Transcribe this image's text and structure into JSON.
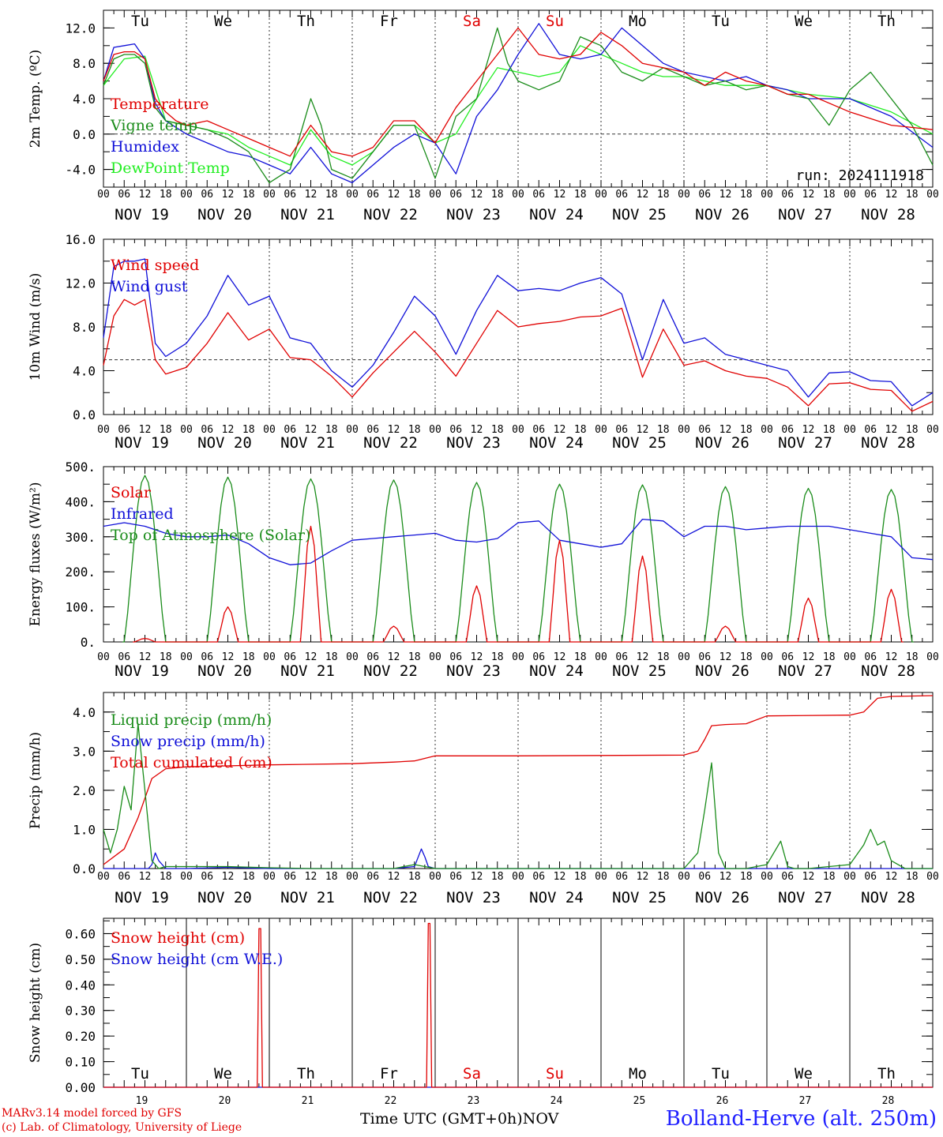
{
  "days": [
    {
      "date": "NOV 19",
      "dow": "Tu",
      "weekend": false,
      "num": "19"
    },
    {
      "date": "NOV 20",
      "dow": "We",
      "weekend": false,
      "num": "20"
    },
    {
      "date": "NOV 21",
      "dow": "Th",
      "weekend": false,
      "num": "21"
    },
    {
      "date": "NOV 22",
      "dow": "Fr",
      "weekend": false,
      "num": "22"
    },
    {
      "date": "NOV 23",
      "dow": "Sa",
      "weekend": true,
      "num": "23"
    },
    {
      "date": "NOV 24",
      "dow": "Su",
      "weekend": true,
      "num": "24"
    },
    {
      "date": "NOV 25",
      "dow": "Mo",
      "weekend": false,
      "num": "25"
    },
    {
      "date": "NOV 26",
      "dow": "Tu",
      "weekend": false,
      "num": "26"
    },
    {
      "date": "NOV 27",
      "dow": "We",
      "weekend": false,
      "num": "27"
    },
    {
      "date": "NOV 28",
      "dow": "Th",
      "weekend": false,
      "num": "28"
    }
  ],
  "hour_labels": [
    "00",
    "06",
    "12",
    "18"
  ],
  "end_hour_label": "00",
  "colors": {
    "red": "#e00000",
    "green": "#1a8c1a",
    "blue": "#1010d8",
    "lightgreen": "#22ee22",
    "weekend": "#e00000"
  },
  "footer": {
    "credit_line1": "MARv3.14 model forced by GFS",
    "credit_line2": "(c) Lab. of Climatology, University of Liege",
    "axis_title": "Time UTC (GMT+0h)",
    "month": "NOV",
    "location": "Bolland-Herve (alt. 250m)"
  },
  "chart_data": [
    {
      "type": "line",
      "ylabel": "2m Temp. (ºC)",
      "ylim": [
        -6,
        14
      ],
      "yticks": [
        -4,
        0,
        4,
        8,
        12
      ],
      "ytick_labels": [
        "-4.0",
        "0.0",
        "4.0",
        "8.0",
        "12.0"
      ],
      "hline": 0,
      "annotation": "run: 2024111918",
      "series": [
        {
          "name": "Temperature",
          "color": "#e00000",
          "t": [
            0,
            3,
            6,
            9,
            12,
            15,
            18,
            21,
            24,
            30,
            36,
            42,
            48,
            54,
            60,
            66,
            72,
            78,
            84,
            90,
            96,
            102,
            108,
            114,
            120,
            126,
            132,
            138,
            144,
            150,
            156,
            162,
            168,
            174,
            180,
            186,
            192,
            198,
            204,
            216,
            228,
            240
          ],
          "v": [
            6,
            9,
            9.3,
            9.3,
            8.5,
            4,
            2.5,
            1.5,
            1,
            1.5,
            0.5,
            -0.5,
            -1.5,
            -2.5,
            1,
            -2,
            -2.5,
            -1.5,
            1.5,
            1.5,
            -1,
            3,
            6,
            9,
            12,
            9,
            8.5,
            9,
            11.5,
            10,
            8,
            7.5,
            7,
            5.5,
            7,
            6,
            5.5,
            4.5,
            4.5,
            2.5,
            1,
            0.5
          ]
        },
        {
          "name": "Vigne temp",
          "color": "#1a8c1a",
          "t": [
            0,
            3,
            6,
            9,
            12,
            15,
            18,
            24,
            30,
            36,
            42,
            48,
            54,
            60,
            63,
            66,
            72,
            78,
            84,
            90,
            96,
            102,
            108,
            111,
            114,
            117,
            120,
            126,
            132,
            138,
            144,
            150,
            156,
            162,
            168,
            174,
            180,
            186,
            192,
            198,
            204,
            210,
            216,
            222,
            228,
            234,
            240
          ],
          "v": [
            5.5,
            8.5,
            9,
            9,
            8,
            3,
            1.5,
            1,
            0.5,
            -0.5,
            -2,
            -5.5,
            -4,
            4,
            1,
            -4,
            -5,
            -2,
            1,
            1,
            -5,
            2,
            4,
            8,
            12,
            8,
            6,
            5,
            6,
            11,
            10,
            7,
            6,
            7.5,
            6.5,
            5.5,
            6,
            5,
            5.5,
            4.5,
            4,
            1,
            5,
            7,
            4,
            1,
            -3.5
          ]
        },
        {
          "name": "Humidex",
          "color": "#1010d8",
          "t": [
            0,
            3,
            6,
            9,
            12,
            15,
            18,
            24,
            30,
            36,
            42,
            48,
            54,
            60,
            66,
            72,
            78,
            84,
            90,
            96,
            102,
            108,
            114,
            120,
            126,
            132,
            138,
            144,
            150,
            156,
            162,
            168,
            174,
            180,
            186,
            192,
            198,
            204,
            216,
            228,
            240
          ],
          "v": [
            6,
            9.8,
            10,
            10.2,
            8.5,
            3.5,
            1.5,
            0,
            -1,
            -2,
            -2.5,
            -3.5,
            -4.5,
            -1.5,
            -4.5,
            -5.5,
            -3.5,
            -1.5,
            0,
            -1,
            -4.5,
            2,
            5,
            9,
            12.5,
            9,
            8.5,
            9,
            12,
            10,
            8,
            7,
            6.5,
            6,
            6.5,
            5.5,
            5,
            4,
            4,
            2,
            -1.5
          ]
        },
        {
          "name": "DewPoint Temp",
          "color": "#22ee22",
          "t": [
            0,
            6,
            12,
            18,
            24,
            30,
            36,
            42,
            48,
            54,
            60,
            66,
            72,
            78,
            84,
            90,
            96,
            102,
            108,
            114,
            120,
            126,
            132,
            138,
            144,
            150,
            156,
            162,
            168,
            174,
            180,
            192,
            204,
            216,
            228,
            240
          ],
          "v": [
            5.5,
            8.5,
            8.8,
            1.5,
            1,
            0.5,
            0,
            -1.5,
            -2.5,
            -3.5,
            0.5,
            -2.5,
            -3.5,
            -2,
            1,
            1,
            -1,
            0,
            4,
            7.5,
            7,
            6.5,
            7,
            10,
            9,
            8,
            7,
            6.5,
            6.5,
            6,
            5.5,
            5.5,
            4.5,
            4,
            2.5,
            0
          ]
        }
      ]
    },
    {
      "type": "line",
      "ylabel": "10m Wind (m/s)",
      "ylim": [
        0,
        16
      ],
      "yticks": [
        0,
        4,
        8,
        12,
        16
      ],
      "ytick_labels": [
        "0.0",
        "4.0",
        "8.0",
        "12.0",
        "16.0"
      ],
      "hline": 5,
      "series": [
        {
          "name": "Wind speed",
          "color": "#e00000",
          "t": [
            0,
            3,
            6,
            9,
            12,
            15,
            18,
            24,
            30,
            36,
            42,
            48,
            54,
            60,
            66,
            72,
            78,
            84,
            90,
            96,
            102,
            108,
            114,
            120,
            126,
            132,
            138,
            144,
            150,
            156,
            162,
            168,
            174,
            180,
            186,
            192,
            198,
            204,
            210,
            216,
            222,
            228,
            234,
            240
          ],
          "v": [
            4.5,
            9,
            10.5,
            10,
            10.5,
            5,
            3.7,
            4.3,
            6.5,
            9.3,
            6.8,
            7.8,
            5.2,
            5,
            3.5,
            1.6,
            3.8,
            5.7,
            7.6,
            5.7,
            3.5,
            6.5,
            9.5,
            8,
            8.3,
            8.5,
            8.9,
            9,
            9.7,
            3.4,
            7.8,
            4.5,
            4.9,
            4,
            3.5,
            3.3,
            2.5,
            0.8,
            2.8,
            2.9,
            2.3,
            2.2,
            0.3,
            1.2
          ]
        },
        {
          "name": "Wind gust",
          "color": "#1010d8",
          "t": [
            0,
            3,
            6,
            9,
            12,
            15,
            18,
            24,
            30,
            36,
            42,
            48,
            54,
            60,
            66,
            72,
            78,
            84,
            90,
            96,
            102,
            108,
            114,
            120,
            126,
            132,
            138,
            144,
            150,
            156,
            162,
            168,
            174,
            180,
            186,
            192,
            198,
            204,
            210,
            216,
            222,
            228,
            234,
            240
          ],
          "v": [
            7,
            13.5,
            14,
            14,
            14.2,
            6.5,
            5.3,
            6.5,
            9,
            12.7,
            10,
            10.8,
            7,
            6.5,
            4,
            2.5,
            4.5,
            7.5,
            10.8,
            9,
            5.5,
            9.5,
            12.7,
            11.3,
            11.5,
            11.3,
            12,
            12.5,
            11,
            5,
            10.5,
            6.5,
            7,
            5.5,
            5,
            4.5,
            4,
            1.6,
            3.8,
            3.9,
            3.1,
            3,
            0.8,
            2
          ]
        }
      ]
    },
    {
      "type": "line",
      "ylabel": "Energy fluxes (W/m²)",
      "ylim": [
        0,
        500
      ],
      "yticks": [
        0,
        100,
        200,
        300,
        400,
        500
      ],
      "ytick_labels": [
        "0.",
        "100.",
        "200.",
        "300.",
        "400.",
        "500."
      ],
      "series": [
        {
          "name": "Solar",
          "color": "#e00000",
          "peaks": [
            10,
            100,
            330,
            45,
            160,
            290,
            245,
            45,
            125,
            150
          ]
        },
        {
          "name": "Infrared",
          "color": "#1010d8",
          "t": [
            0,
            6,
            12,
            18,
            24,
            30,
            36,
            42,
            48,
            54,
            60,
            66,
            72,
            78,
            84,
            90,
            96,
            102,
            108,
            114,
            120,
            126,
            132,
            138,
            144,
            150,
            156,
            162,
            168,
            174,
            180,
            186,
            192,
            198,
            204,
            210,
            216,
            222,
            228,
            234,
            240
          ],
          "v": [
            330,
            340,
            330,
            310,
            300,
            300,
            305,
            280,
            240,
            220,
            225,
            260,
            290,
            295,
            300,
            305,
            310,
            290,
            285,
            295,
            340,
            345,
            290,
            280,
            270,
            280,
            350,
            345,
            300,
            330,
            330,
            320,
            325,
            330,
            330,
            330,
            320,
            310,
            300,
            240,
            235
          ]
        },
        {
          "name": "Top of Atmosphere (Solar)",
          "color": "#1a8c1a",
          "peaks": [
            475,
            470,
            465,
            462,
            455,
            450,
            448,
            443,
            438,
            435
          ]
        }
      ]
    },
    {
      "type": "line",
      "ylabel": "Precip (mm/h)",
      "ylim": [
        0,
        4.5
      ],
      "yticks": [
        0,
        1,
        2,
        3,
        4
      ],
      "ytick_labels": [
        "0.0",
        "1.0",
        "2.0",
        "3.0",
        "4.0"
      ],
      "series": [
        {
          "name": "Liquid precip (mm/h)",
          "color": "#1a8c1a",
          "t": [
            0,
            2,
            4,
            6,
            8,
            10,
            12,
            14,
            16,
            18,
            24,
            36,
            48,
            60,
            84,
            90,
            96,
            120,
            168,
            172,
            174,
            176,
            178,
            180,
            186,
            192,
            196,
            198,
            200,
            204,
            216,
            220,
            222,
            224,
            226,
            228,
            232,
            240
          ],
          "v": [
            1,
            0.4,
            1,
            2.1,
            1.5,
            3.7,
            2,
            0.2,
            0,
            0.05,
            0.05,
            0.05,
            0.02,
            0,
            0,
            0.1,
            0,
            0,
            0,
            0.4,
            1.5,
            2.7,
            0.4,
            0,
            0,
            0.1,
            0.7,
            0.05,
            0,
            0,
            0.1,
            0.6,
            1.0,
            0.6,
            0.7,
            0.2,
            0,
            0
          ]
        },
        {
          "name": "Snow precip (mm/h)",
          "color": "#1010d8",
          "t": [
            0,
            13,
            14,
            15,
            16,
            18,
            24,
            36,
            48,
            60,
            84,
            90,
            92,
            93,
            94,
            96,
            240
          ],
          "v": [
            0,
            0,
            0.1,
            0.4,
            0.2,
            0,
            0,
            0.03,
            0,
            0,
            0,
            0.05,
            0.5,
            0.3,
            0.05,
            0,
            0
          ]
        },
        {
          "name": "Total cumulated (cm)",
          "color": "#e00000",
          "t": [
            0,
            6,
            10,
            14,
            18,
            24,
            48,
            72,
            84,
            90,
            96,
            120,
            168,
            172,
            174,
            176,
            180,
            186,
            192,
            216,
            220,
            224,
            228,
            240
          ],
          "v": [
            0.1,
            0.5,
            1.3,
            2.3,
            2.55,
            2.6,
            2.65,
            2.68,
            2.72,
            2.75,
            2.88,
            2.88,
            2.9,
            3.0,
            3.3,
            3.65,
            3.68,
            3.7,
            3.9,
            3.92,
            4.0,
            4.35,
            4.4,
            4.42
          ]
        }
      ]
    },
    {
      "type": "line",
      "ylabel": "Snow height (cm)",
      "ylim": [
        0,
        0.66
      ],
      "yticks": [
        0,
        0.1,
        0.2,
        0.3,
        0.4,
        0.5,
        0.6
      ],
      "ytick_labels": [
        "0.00",
        "0.10",
        "0.20",
        "0.30",
        "0.40",
        "0.50",
        "0.60"
      ],
      "series": [
        {
          "name": "Snow height (cm)",
          "color": "#e00000",
          "t": [
            0,
            44.5,
            45,
            45.5,
            46,
            93.5,
            94,
            94.5,
            95,
            240
          ],
          "v": [
            0,
            0,
            0.62,
            0.62,
            0,
            0,
            0.64,
            0.64,
            0,
            0
          ]
        },
        {
          "name": "Snow height (cm W.E.)",
          "color": "#1010d8",
          "t": [
            0,
            240
          ],
          "v": [
            0,
            0
          ]
        }
      ]
    }
  ]
}
